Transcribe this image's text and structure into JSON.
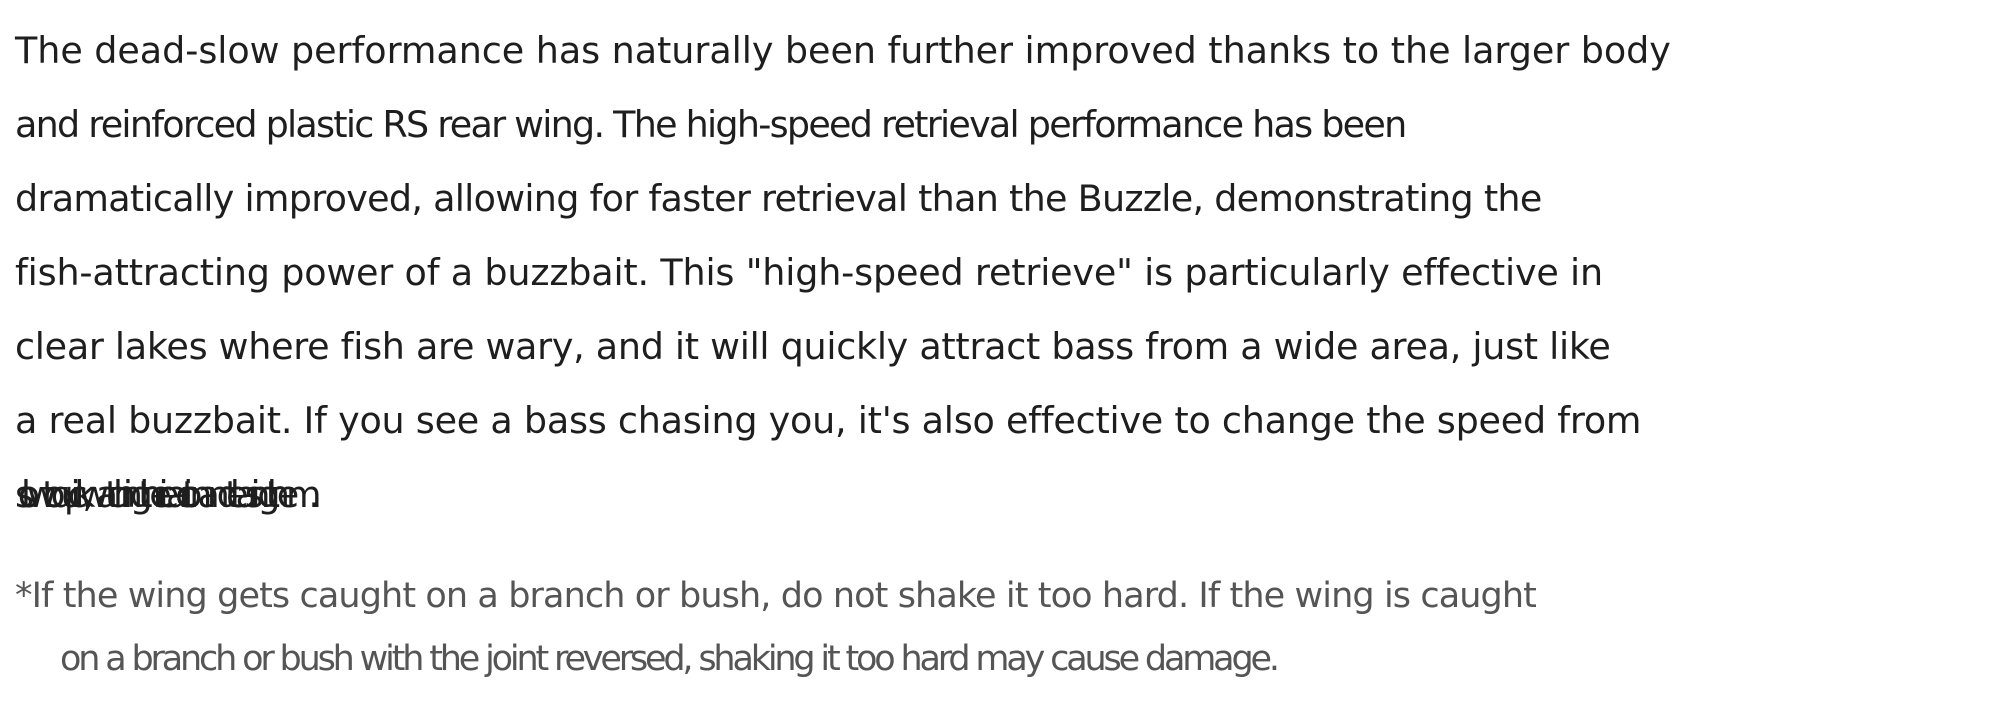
{
  "body": {
    "lines": [
      "The dead-slow performance has naturally been further improved thanks to the larger body",
      "and reinforced plastic RS rear wing. The high-speed retrieval performance has been",
      "dramatically improved, allowing for faster retrieval than the Buzzle, demonstrating the",
      "fish-attracting power of a buzzbait. This \"high-speed retrieve\" is particularly effective in",
      "clear lakes where fish are wary, and it will quickly attract bass from a wide area, just like",
      "a real buzzbait. If you see a bass chasing you, it's also effective to change the speed from",
      "slow to quick, watching their reaction and teasing them."
    ]
  },
  "note": {
    "lines": [
      "*If the wing gets caught on a branch or bush, do not shake it too hard. If the wing is caught",
      "on a branch or bush with the joint reversed, shaking it too hard may cause damage."
    ]
  }
}
